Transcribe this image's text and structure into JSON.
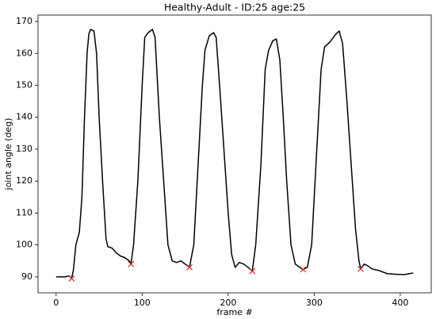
{
  "chart_data": {
    "type": "line",
    "title": "Healthy-Adult - ID:25 age:25",
    "xlabel": "frame #",
    "ylabel": "joint angle (deg)",
    "xlim": [
      -21,
      436
    ],
    "ylim": [
      85,
      172
    ],
    "xticks": [
      0,
      100,
      200,
      300,
      400
    ],
    "yticks": [
      90,
      100,
      110,
      120,
      130,
      140,
      150,
      160,
      170
    ],
    "grid": false,
    "series": [
      {
        "color": "#000000",
        "x": [
          0,
          10,
          15,
          18,
          20,
          23,
          27,
          30,
          33,
          36,
          38,
          40,
          44,
          47,
          50,
          54,
          58,
          60,
          65,
          70,
          75,
          80,
          85,
          87,
          90,
          95,
          100,
          103,
          107,
          112,
          115,
          120,
          125,
          130,
          135,
          140,
          145,
          150,
          155,
          160,
          165,
          170,
          173,
          178,
          183,
          186,
          190,
          195,
          200,
          204,
          208,
          213,
          218,
          223,
          228,
          232,
          238,
          243,
          247,
          252,
          256,
          260,
          264,
          268,
          273,
          278,
          283,
          287,
          292,
          297,
          302,
          308,
          312,
          318,
          325,
          329,
          333,
          338,
          343,
          348,
          352,
          354,
          358,
          362,
          367,
          375,
          385,
          395,
          405,
          410,
          415
        ],
        "values": [
          90,
          90,
          90.3,
          89.5,
          92,
          100,
          104,
          115,
          140,
          160,
          166,
          167.5,
          167,
          160,
          140,
          120,
          102,
          99.5,
          99,
          97.5,
          96.5,
          96,
          95,
          94,
          100,
          120,
          150,
          165,
          166.5,
          167.5,
          165,
          140,
          120,
          100,
          95,
          94.5,
          95,
          94,
          93,
          100,
          125,
          150,
          161,
          165.5,
          166.5,
          165,
          150,
          130,
          110,
          97,
          93,
          94.5,
          94,
          93,
          91.8,
          100,
          125,
          155,
          161,
          164,
          164.5,
          158,
          140,
          120,
          100,
          94,
          93,
          92.3,
          93,
          100,
          125,
          155,
          162,
          163.5,
          166,
          167,
          163,
          145,
          125,
          105,
          95,
          92.5,
          94,
          93.5,
          92.5,
          92,
          91,
          90.8,
          90.7,
          91,
          91.2
        ]
      },
      {
        "color": "#d62728",
        "marker": "x",
        "x": [
          18,
          87,
          155,
          228,
          287,
          354
        ],
        "values": [
          89.5,
          94,
          93,
          91.8,
          92.3,
          92.5
        ]
      }
    ]
  }
}
